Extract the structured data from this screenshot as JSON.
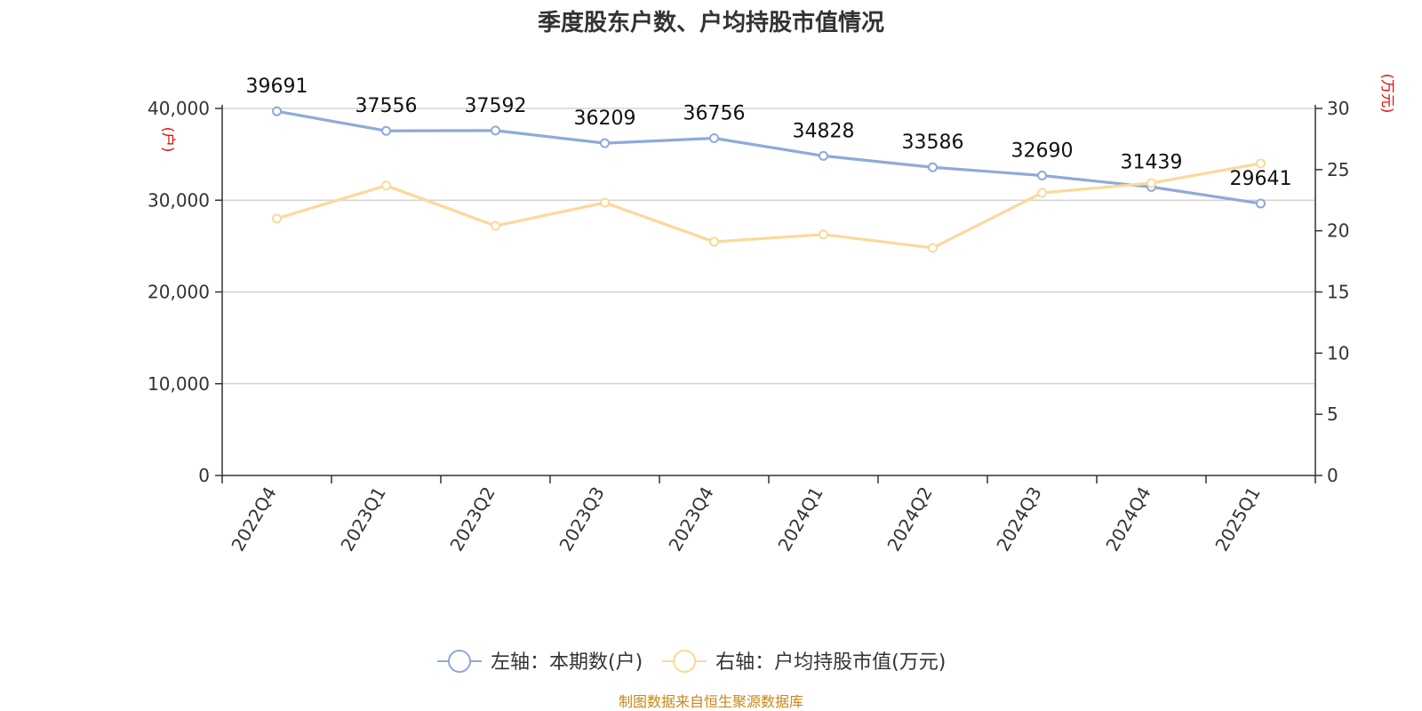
{
  "chart_data": {
    "type": "line",
    "title": "季度股东户数、户均持股市值情况",
    "categories": [
      "2022Q4",
      "2023Q1",
      "2023Q2",
      "2023Q3",
      "2023Q4",
      "2024Q1",
      "2024Q2",
      "2024Q3",
      "2024Q4",
      "2025Q1"
    ],
    "series": [
      {
        "name": "左轴：本期数(户)",
        "axis": "left",
        "color": "#8eaadb",
        "values": [
          39691,
          37556,
          37592,
          36209,
          36756,
          34828,
          33586,
          32690,
          31439,
          29641
        ],
        "data_labels": [
          "39691",
          "37556",
          "37592",
          "36209",
          "36756",
          "34828",
          "33586",
          "32690",
          "31439",
          "29641"
        ]
      },
      {
        "name": "右轴：户均持股市值(万元)",
        "axis": "right",
        "color": "#fdd89a",
        "values": [
          21.0,
          23.7,
          20.4,
          22.3,
          19.1,
          19.7,
          18.6,
          23.1,
          23.9,
          25.5
        ]
      }
    ],
    "left_axis": {
      "unit": "(户)",
      "ylim": [
        0,
        40000
      ],
      "ticks": [
        "0",
        "10,000",
        "20,000",
        "30,000",
        "40,000"
      ],
      "tick_values": [
        0,
        10000,
        20000,
        30000,
        40000
      ]
    },
    "right_axis": {
      "unit": "(万元)",
      "ylim": [
        0,
        30
      ],
      "ticks": [
        "0",
        "5",
        "10",
        "15",
        "20",
        "25",
        "30"
      ],
      "tick_values": [
        0,
        5,
        10,
        15,
        20,
        25,
        30
      ]
    },
    "grid": true,
    "legend_position": "bottom",
    "source": "制图数据来自恒生聚源数据库"
  }
}
